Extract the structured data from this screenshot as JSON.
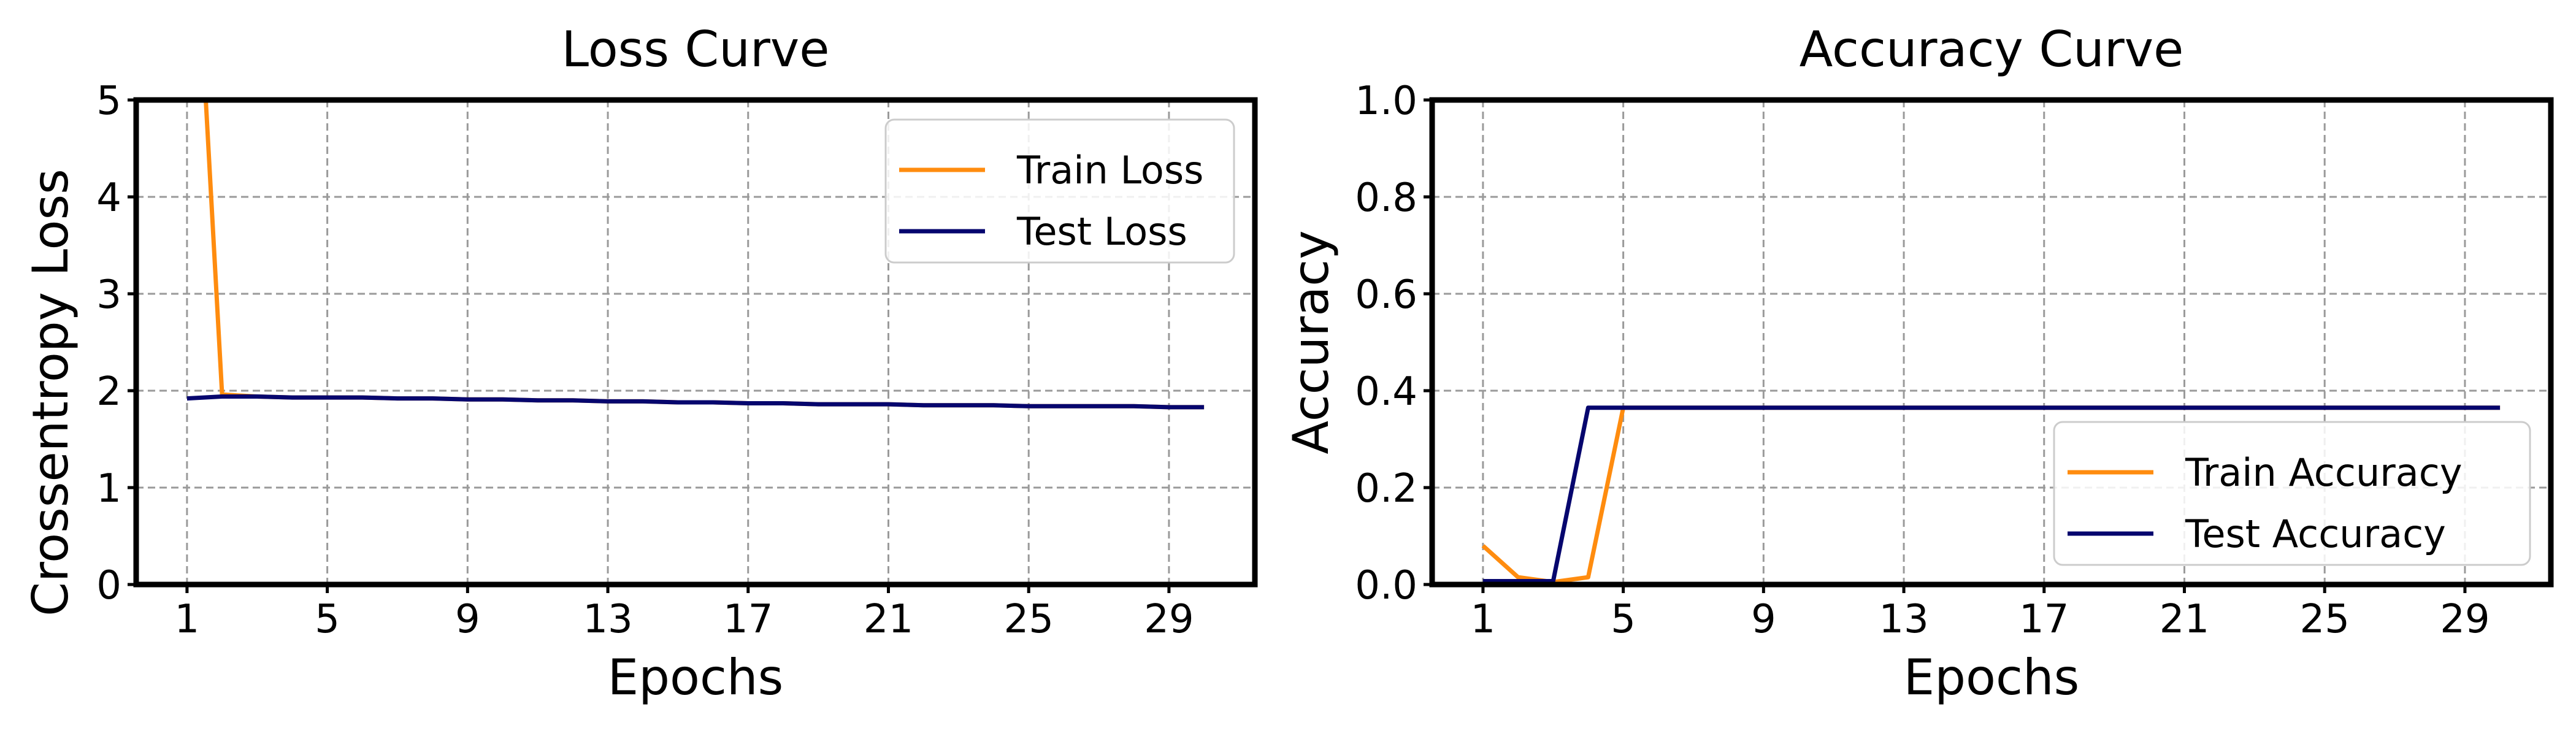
{
  "colors": {
    "train": "#ff8c0f",
    "test": "#06066e"
  },
  "chart_data": [
    {
      "type": "line",
      "title": "Loss Curve",
      "xlabel": "Epochs",
      "ylabel": "Crossentropy Loss",
      "xticks": [
        1,
        5,
        9,
        13,
        17,
        21,
        25,
        29
      ],
      "yticks": [
        0,
        1,
        2,
        3,
        4,
        5
      ],
      "ytick_labels": [
        "0",
        "1",
        "2",
        "3",
        "4",
        "5"
      ],
      "xlim": [
        -0.45,
        31.45
      ],
      "ylim": [
        0,
        5
      ],
      "grid": true,
      "legend_position": "upper right",
      "x": [
        1,
        2,
        3,
        4,
        5,
        6,
        7,
        8,
        9,
        10,
        11,
        12,
        13,
        14,
        15,
        16,
        17,
        18,
        19,
        20,
        21,
        22,
        23,
        24,
        25,
        26,
        27,
        28,
        29,
        30
      ],
      "series": [
        {
          "name": "Train Loss",
          "color_key": "train",
          "values": [
            8.5,
            1.96,
            1.94,
            1.93,
            1.93,
            1.93,
            1.92,
            1.92,
            1.91,
            1.91,
            1.9,
            1.9,
            1.89,
            1.89,
            1.88,
            1.88,
            1.87,
            1.87,
            1.86,
            1.86,
            1.86,
            1.85,
            1.85,
            1.85,
            1.84,
            1.84,
            1.84,
            1.84,
            1.83,
            1.83
          ]
        },
        {
          "name": "Test Loss",
          "color_key": "test",
          "values": [
            1.92,
            1.94,
            1.94,
            1.93,
            1.93,
            1.93,
            1.92,
            1.92,
            1.91,
            1.91,
            1.9,
            1.9,
            1.89,
            1.89,
            1.88,
            1.88,
            1.87,
            1.87,
            1.86,
            1.86,
            1.86,
            1.85,
            1.85,
            1.85,
            1.84,
            1.84,
            1.84,
            1.84,
            1.83,
            1.83
          ]
        }
      ]
    },
    {
      "type": "line",
      "title": "Accuracy Curve",
      "xlabel": "Epochs",
      "ylabel": "Accuracy",
      "xticks": [
        1,
        5,
        9,
        13,
        17,
        21,
        25,
        29
      ],
      "yticks": [
        0,
        0.2,
        0.4,
        0.6,
        0.8,
        1.0
      ],
      "ytick_labels": [
        "0.0",
        "0.2",
        "0.4",
        "0.6",
        "0.8",
        "1.0"
      ],
      "xlim": [
        -0.45,
        31.45
      ],
      "ylim": [
        0,
        1
      ],
      "grid": true,
      "legend_position": "lower right",
      "x": [
        1,
        2,
        3,
        4,
        5,
        6,
        7,
        8,
        9,
        10,
        11,
        12,
        13,
        14,
        15,
        16,
        17,
        18,
        19,
        20,
        21,
        22,
        23,
        24,
        25,
        26,
        27,
        28,
        29,
        30
      ],
      "series": [
        {
          "name": "Train Accuracy",
          "color_key": "train",
          "values": [
            0.08,
            0.015,
            0.005,
            0.015,
            0.365,
            0.365,
            0.365,
            0.365,
            0.365,
            0.365,
            0.365,
            0.365,
            0.365,
            0.365,
            0.365,
            0.365,
            0.365,
            0.365,
            0.365,
            0.365,
            0.365,
            0.365,
            0.365,
            0.365,
            0.365,
            0.365,
            0.365,
            0.365,
            0.365,
            0.365
          ]
        },
        {
          "name": "Test Accuracy",
          "color_key": "test",
          "values": [
            0.007,
            0.007,
            0.007,
            0.365,
            0.365,
            0.365,
            0.365,
            0.365,
            0.365,
            0.365,
            0.365,
            0.365,
            0.365,
            0.365,
            0.365,
            0.365,
            0.365,
            0.365,
            0.365,
            0.365,
            0.365,
            0.365,
            0.365,
            0.365,
            0.365,
            0.365,
            0.365,
            0.365,
            0.365,
            0.365
          ]
        }
      ]
    }
  ]
}
